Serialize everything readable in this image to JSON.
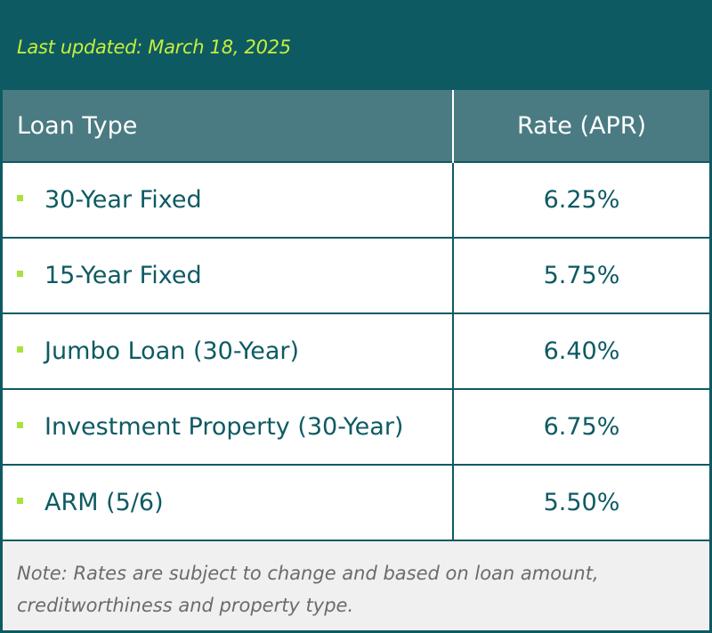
{
  "header": {
    "updated": "Last updated: March 18, 2025"
  },
  "table": {
    "columns": [
      "Loan Type",
      "Rate (APR)"
    ],
    "rows": [
      [
        "30-Year Fixed",
        "6.25%"
      ],
      [
        "15-Year Fixed",
        "5.75%"
      ],
      [
        "Jumbo Loan (30-Year)",
        "6.40%"
      ],
      [
        "Investment Property (30-Year)",
        "6.75%"
      ],
      [
        "ARM (5/6)",
        "5.50%"
      ]
    ]
  },
  "note": "Note:  Rates are subject to change and based on loan amount, creditworthiness and property type."
}
